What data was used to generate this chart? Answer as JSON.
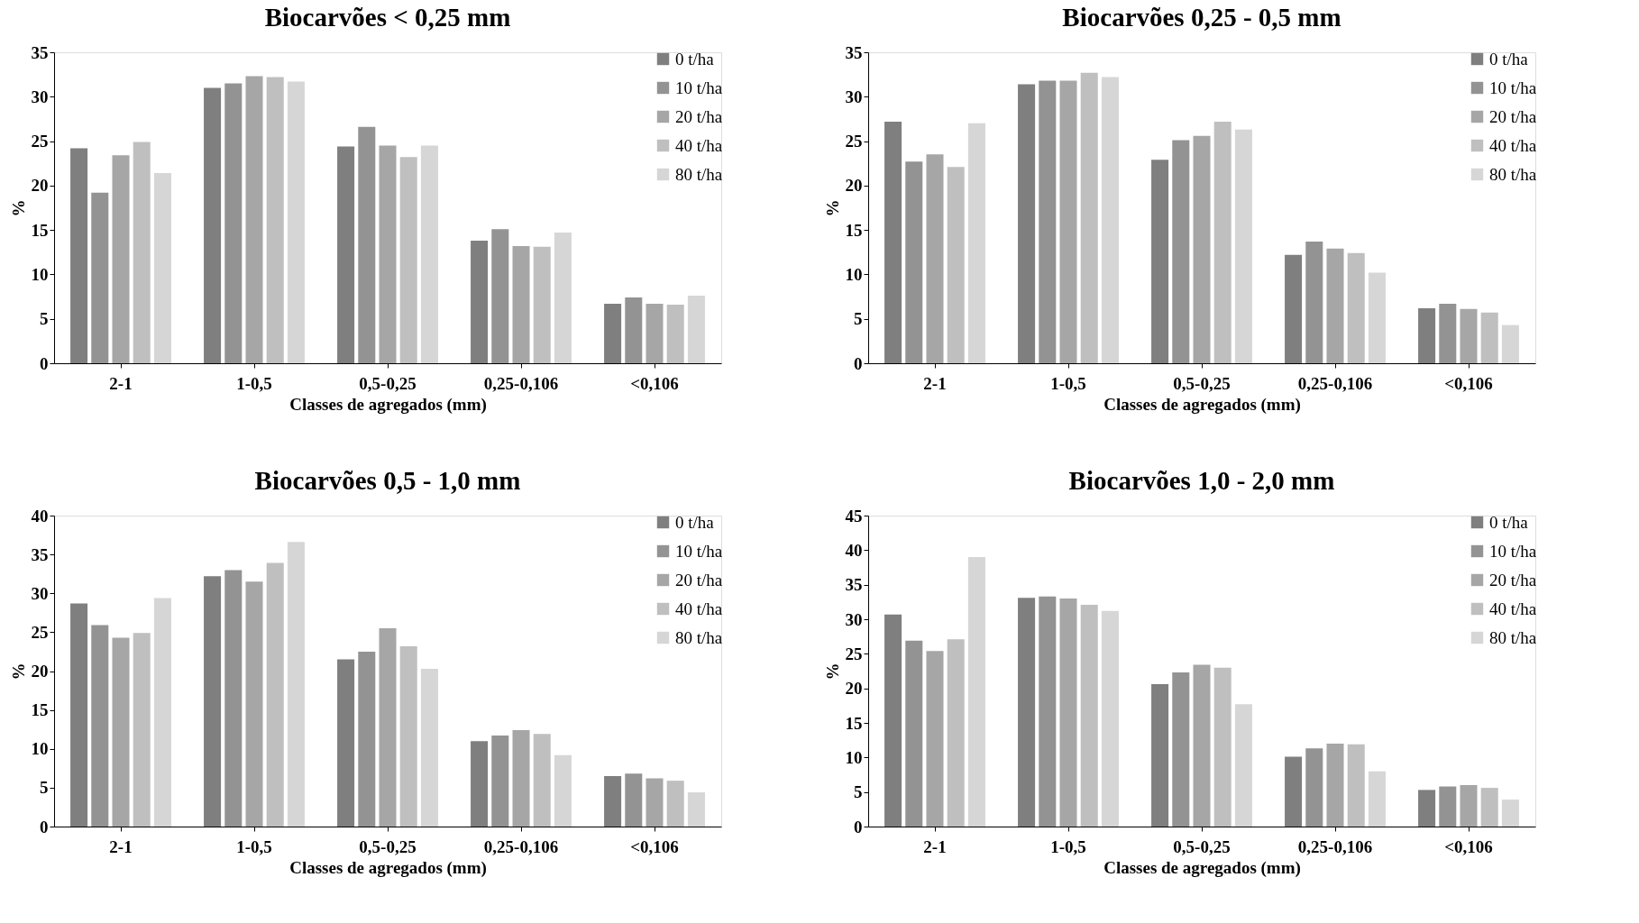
{
  "chart_data": [
    {
      "type": "bar",
      "title": "Biocarvões < 0,25 mm",
      "xlabel": "Classes de agregados (mm)",
      "ylabel": "%",
      "categories": [
        "2-1",
        "1-0,5",
        "0,5-0,25",
        "0,25-0,106",
        "<0,106"
      ],
      "ylim": [
        0,
        35
      ],
      "yticks": [
        0,
        5,
        10,
        15,
        20,
        25,
        30,
        35
      ],
      "grid": false,
      "legend": "top right",
      "series": [
        {
          "name": "0 t/ha",
          "color": "#7f7f7f",
          "values": [
            24.2,
            31.0,
            24.4,
            13.8,
            6.7
          ]
        },
        {
          "name": "10 t/ha",
          "color": "#939393",
          "values": [
            19.2,
            31.5,
            26.6,
            15.1,
            7.4
          ]
        },
        {
          "name": "20 t/ha",
          "color": "#a6a6a6",
          "values": [
            23.4,
            32.3,
            24.5,
            13.2,
            6.7
          ]
        },
        {
          "name": "40 t/ha",
          "color": "#bfbfbf",
          "values": [
            24.9,
            32.2,
            23.2,
            13.1,
            6.6
          ]
        },
        {
          "name": "80 t/ha",
          "color": "#d6d6d6",
          "values": [
            21.4,
            31.7,
            24.5,
            14.7,
            7.6
          ]
        }
      ]
    },
    {
      "type": "bar",
      "title": "Biocarvões 0,25 - 0,5 mm",
      "xlabel": "Classes de agregados (mm)",
      "ylabel": "%",
      "categories": [
        "2-1",
        "1-0,5",
        "0,5-0,25",
        "0,25-0,106",
        "<0,106"
      ],
      "ylim": [
        0,
        35
      ],
      "yticks": [
        0,
        5,
        10,
        15,
        20,
        25,
        30,
        35
      ],
      "grid": false,
      "legend": "top right",
      "series": [
        {
          "name": "0 t/ha",
          "color": "#7f7f7f",
          "values": [
            27.2,
            31.4,
            22.9,
            12.2,
            6.2
          ]
        },
        {
          "name": "10 t/ha",
          "color": "#939393",
          "values": [
            22.7,
            31.8,
            25.1,
            13.7,
            6.7
          ]
        },
        {
          "name": "20 t/ha",
          "color": "#a6a6a6",
          "values": [
            23.5,
            31.8,
            25.6,
            12.9,
            6.1
          ]
        },
        {
          "name": "40 t/ha",
          "color": "#bfbfbf",
          "values": [
            22.1,
            32.7,
            27.2,
            12.4,
            5.7
          ]
        },
        {
          "name": "80 t/ha",
          "color": "#d6d6d6",
          "values": [
            27.0,
            32.2,
            26.3,
            10.2,
            4.3
          ]
        }
      ]
    },
    {
      "type": "bar",
      "title": "Biocarvões 0,5 - 1,0 mm",
      "xlabel": "Classes de agregados (mm)",
      "ylabel": "%",
      "categories": [
        "2-1",
        "1-0,5",
        "0,5-0,25",
        "0,25-0,106",
        "<0,106"
      ],
      "ylim": [
        0,
        40
      ],
      "yticks": [
        0,
        5,
        10,
        15,
        20,
        25,
        30,
        35,
        40
      ],
      "grid": false,
      "legend": "top right",
      "series": [
        {
          "name": "0 t/ha",
          "color": "#7f7f7f",
          "values": [
            28.7,
            32.2,
            21.5,
            11.0,
            6.5
          ]
        },
        {
          "name": "10 t/ha",
          "color": "#939393",
          "values": [
            25.9,
            33.0,
            22.5,
            11.7,
            6.8
          ]
        },
        {
          "name": "20 t/ha",
          "color": "#a6a6a6",
          "values": [
            24.3,
            31.5,
            25.5,
            12.4,
            6.2
          ]
        },
        {
          "name": "40 t/ha",
          "color": "#bfbfbf",
          "values": [
            24.9,
            33.9,
            23.2,
            11.9,
            5.9
          ]
        },
        {
          "name": "80 t/ha",
          "color": "#d6d6d6",
          "values": [
            29.4,
            36.6,
            20.3,
            9.2,
            4.4
          ]
        }
      ]
    },
    {
      "type": "bar",
      "title": "Biocarvões 1,0 - 2,0 mm",
      "xlabel": "Classes de agregados (mm)",
      "ylabel": "%",
      "categories": [
        "2-1",
        "1-0,5",
        "0,5-0,25",
        "0,25-0,106",
        "<0,106"
      ],
      "ylim": [
        0,
        45
      ],
      "yticks": [
        0,
        5,
        10,
        15,
        20,
        25,
        30,
        35,
        40,
        45
      ],
      "grid": false,
      "legend": "top right",
      "series": [
        {
          "name": "0 t/ha",
          "color": "#7f7f7f",
          "values": [
            30.7,
            33.1,
            20.6,
            10.1,
            5.3
          ]
        },
        {
          "name": "10 t/ha",
          "color": "#939393",
          "values": [
            26.9,
            33.3,
            22.3,
            11.3,
            5.8
          ]
        },
        {
          "name": "20 t/ha",
          "color": "#a6a6a6",
          "values": [
            25.4,
            33.0,
            23.4,
            12.0,
            6.0
          ]
        },
        {
          "name": "40 t/ha",
          "color": "#bfbfbf",
          "values": [
            27.1,
            32.1,
            23.0,
            11.9,
            5.6
          ]
        },
        {
          "name": "80 t/ha",
          "color": "#d6d6d6",
          "values": [
            39.0,
            31.2,
            17.7,
            8.0,
            3.9
          ]
        }
      ]
    }
  ]
}
